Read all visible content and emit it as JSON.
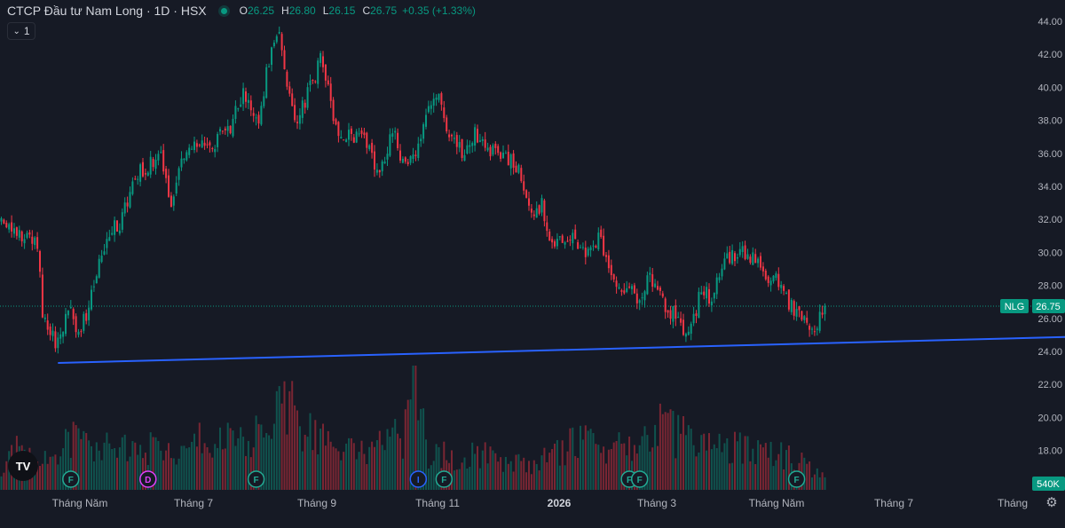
{
  "header": {
    "title": "CTCP Đầu tư Nam Long · 1D · HSX",
    "o_label": "O",
    "o_value": "26.25",
    "h_label": "H",
    "h_value": "26.80",
    "l_label": "L",
    "l_value": "26.15",
    "c_label": "C",
    "c_value": "26.75",
    "change": "+0.35 (+1.33%)",
    "indicator_count": "1"
  },
  "icons": {
    "collapse": "chevron-down-icon",
    "logo": "tradingview-logo-icon",
    "settings": "gear-icon",
    "status": "market-status-dot-icon"
  },
  "colors": {
    "up": "#089981",
    "down": "#f23645",
    "trendline": "#2962ff",
    "price_label": "#089981",
    "background": "#161a25"
  },
  "chart_data": {
    "type": "candlestick",
    "symbol": "NLG",
    "last_price_label": "26.75",
    "volume_label": "540K",
    "y_ticks": [
      "44.00",
      "42.00",
      "40.00",
      "38.00",
      "36.00",
      "34.00",
      "32.00",
      "30.00",
      "28.00",
      "26.00",
      "24.00",
      "22.00",
      "20.00",
      "18.00"
    ],
    "ylim": [
      17,
      45
    ],
    "x_ticks": [
      "Tháng Năm",
      "Tháng 7",
      "Tháng 9",
      "Tháng 11",
      "2026",
      "Tháng 3",
      "Tháng Năm",
      "Tháng 7",
      "Tháng"
    ],
    "bold_x_ticks": [
      "2026"
    ],
    "price_path": [
      [
        0,
        31.8
      ],
      [
        10,
        31.0
      ],
      [
        14,
        30.6
      ],
      [
        16,
        26.5
      ],
      [
        20,
        24.8
      ],
      [
        22,
        24.4
      ],
      [
        26,
        26.6
      ],
      [
        30,
        25.2
      ],
      [
        34,
        26.5
      ],
      [
        38,
        29.5
      ],
      [
        42,
        31.2
      ],
      [
        46,
        31.8
      ],
      [
        52,
        34.6
      ],
      [
        56,
        35.2
      ],
      [
        62,
        35.7
      ],
      [
        66,
        33.2
      ],
      [
        70,
        35.5
      ],
      [
        76,
        36.4
      ],
      [
        82,
        36.2
      ],
      [
        86,
        37.6
      ],
      [
        88,
        37.2
      ],
      [
        94,
        39.8
      ],
      [
        100,
        38.2
      ],
      [
        104,
        41.7
      ],
      [
        108,
        43.5
      ],
      [
        111,
        40.2
      ],
      [
        114,
        38.0
      ],
      [
        118,
        39.2
      ],
      [
        124,
        41.6
      ],
      [
        127,
        40.0
      ],
      [
        130,
        37.6
      ],
      [
        136,
        37.0
      ],
      [
        142,
        36.6
      ],
      [
        146,
        34.6
      ],
      [
        152,
        37.4
      ],
      [
        156,
        35.5
      ],
      [
        162,
        36.4
      ],
      [
        166,
        38.8
      ],
      [
        170,
        39.6
      ],
      [
        174,
        37.0
      ],
      [
        180,
        36.0
      ],
      [
        184,
        37.2
      ],
      [
        190,
        36.2
      ],
      [
        194,
        35.6
      ],
      [
        198,
        35.8
      ],
      [
        202,
        34.6
      ],
      [
        206,
        32.0
      ],
      [
        210,
        32.8
      ],
      [
        214,
        30.6
      ],
      [
        220,
        30.8
      ],
      [
        224,
        30.6
      ],
      [
        228,
        30.0
      ],
      [
        232,
        31.0
      ],
      [
        236,
        29.5
      ],
      [
        240,
        27.8
      ],
      [
        244,
        28.2
      ],
      [
        248,
        27.0
      ],
      [
        252,
        28.6
      ],
      [
        256,
        27.2
      ],
      [
        260,
        26.4
      ],
      [
        262,
        26.2
      ],
      [
        266,
        24.6
      ],
      [
        268,
        25.5
      ],
      [
        270,
        26.6
      ],
      [
        272,
        27.8
      ],
      [
        276,
        27.2
      ],
      [
        280,
        29.2
      ],
      [
        286,
        30.0
      ],
      [
        290,
        29.8
      ],
      [
        294,
        29.4
      ],
      [
        298,
        28.4
      ],
      [
        302,
        28.2
      ],
      [
        304,
        27.3
      ],
      [
        308,
        26.6
      ],
      [
        312,
        26.2
      ],
      [
        316,
        24.9
      ],
      [
        318,
        26.2
      ],
      [
        320,
        26.75
      ]
    ],
    "volume_path": [
      [
        0,
        0.16
      ],
      [
        8,
        0.42
      ],
      [
        14,
        0.22
      ],
      [
        20,
        0.3
      ],
      [
        30,
        0.45
      ],
      [
        40,
        0.38
      ],
      [
        50,
        0.33
      ],
      [
        60,
        0.36
      ],
      [
        66,
        0.28
      ],
      [
        76,
        0.4
      ],
      [
        86,
        0.46
      ],
      [
        96,
        0.42
      ],
      [
        104,
        0.5
      ],
      [
        110,
        0.82
      ],
      [
        118,
        0.48
      ],
      [
        126,
        0.4
      ],
      [
        136,
        0.32
      ],
      [
        146,
        0.38
      ],
      [
        156,
        0.45
      ],
      [
        160,
        1.0
      ],
      [
        166,
        0.3
      ],
      [
        176,
        0.28
      ],
      [
        186,
        0.3
      ],
      [
        196,
        0.24
      ],
      [
        206,
        0.22
      ],
      [
        216,
        0.34
      ],
      [
        226,
        0.4
      ],
      [
        236,
        0.36
      ],
      [
        246,
        0.32
      ],
      [
        256,
        0.55
      ],
      [
        262,
        0.46
      ],
      [
        270,
        0.42
      ],
      [
        280,
        0.4
      ],
      [
        290,
        0.34
      ],
      [
        300,
        0.32
      ],
      [
        310,
        0.25
      ],
      [
        320,
        0.1
      ]
    ],
    "trendline": {
      "from": [
        22,
        23.3
      ],
      "to": [
        420,
        24.9
      ]
    },
    "event_markers": [
      {
        "bar": 27,
        "letter": "F",
        "kind": "financials"
      },
      {
        "bar": 57,
        "letter": "D",
        "kind": "dividend"
      },
      {
        "bar": 99,
        "letter": "F",
        "kind": "financials"
      },
      {
        "bar": 162,
        "letter": "I",
        "kind": "info"
      },
      {
        "bar": 172,
        "letter": "F",
        "kind": "financials"
      },
      {
        "bar": 244,
        "letter": "F",
        "kind": "financials"
      },
      {
        "bar": 248,
        "letter": "F",
        "kind": "financials"
      },
      {
        "bar": 309,
        "letter": "F",
        "kind": "financials"
      }
    ],
    "grid": false,
    "legend": "top-left"
  }
}
